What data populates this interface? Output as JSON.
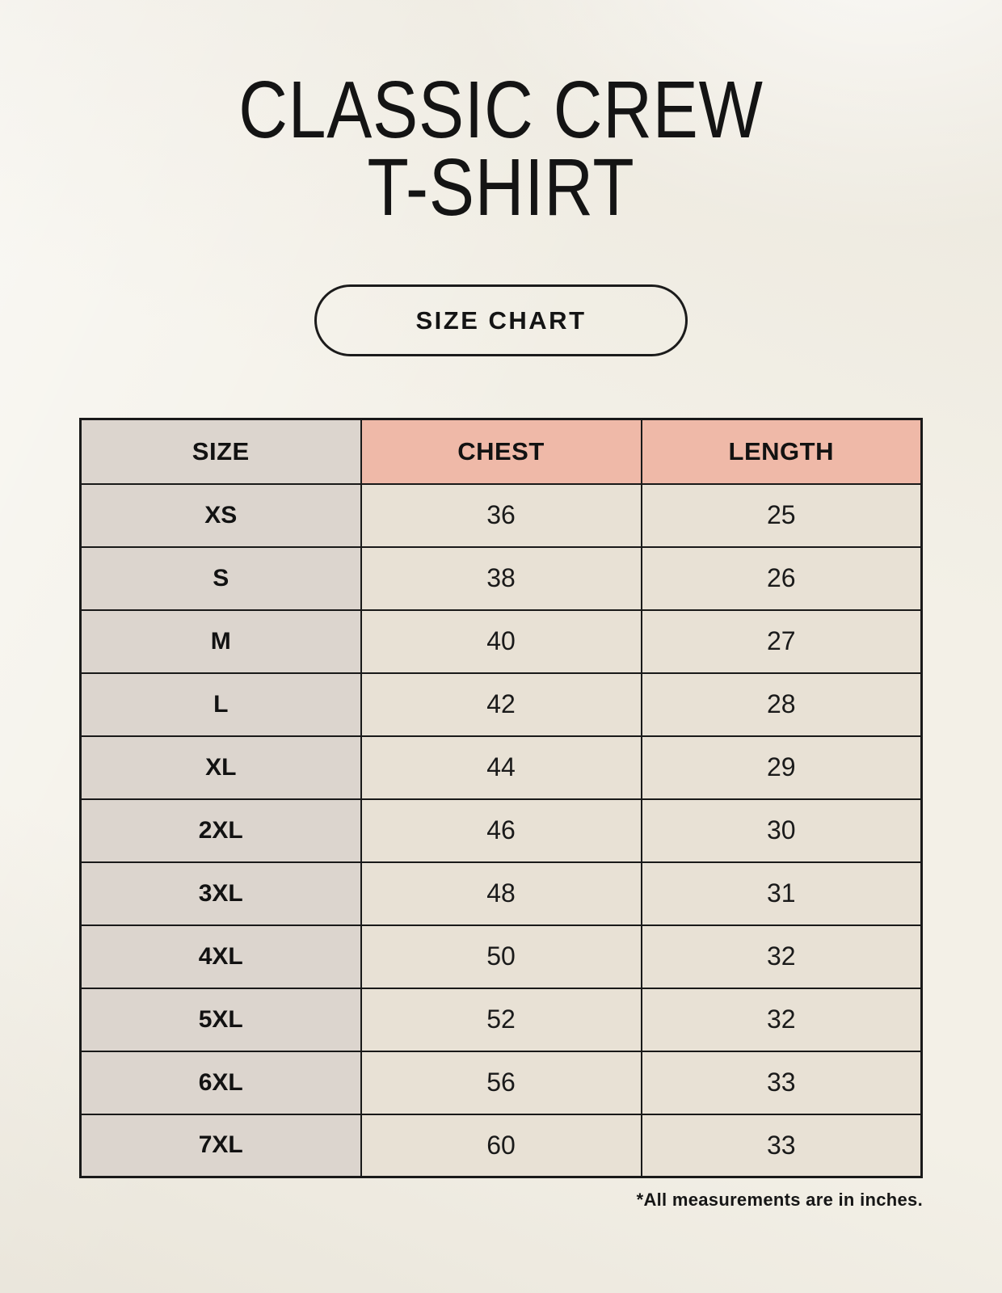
{
  "header": {
    "title_line1": "CLASSIC CREW",
    "title_line2": "T-SHIRT",
    "badge_label": "SIZE CHART"
  },
  "footnote": "*All measurements are in inches.",
  "chart_data": {
    "type": "table",
    "title": "CLASSIC CREW T-SHIRT",
    "columns": [
      "SIZE",
      "CHEST",
      "LENGTH"
    ],
    "units": "inches",
    "rows": [
      {
        "size": "XS",
        "chest": "36",
        "length": "25"
      },
      {
        "size": "S",
        "chest": "38",
        "length": "26"
      },
      {
        "size": "M",
        "chest": "40",
        "length": "27"
      },
      {
        "size": "L",
        "chest": "42",
        "length": "28"
      },
      {
        "size": "XL",
        "chest": "44",
        "length": "29"
      },
      {
        "size": "2XL",
        "chest": "46",
        "length": "30"
      },
      {
        "size": "3XL",
        "chest": "48",
        "length": "31"
      },
      {
        "size": "4XL",
        "chest": "50",
        "length": "32"
      },
      {
        "size": "5XL",
        "chest": "52",
        "length": "32"
      },
      {
        "size": "6XL",
        "chest": "56",
        "length": "33"
      },
      {
        "size": "7XL",
        "chest": "60",
        "length": "33"
      }
    ]
  },
  "colors": {
    "background": "#f3f0e7",
    "size_column": "#dcd5ce",
    "header_accent": "#efb9a8",
    "data_cell": "#e8e1d5",
    "border": "#191919",
    "text": "#121212"
  }
}
